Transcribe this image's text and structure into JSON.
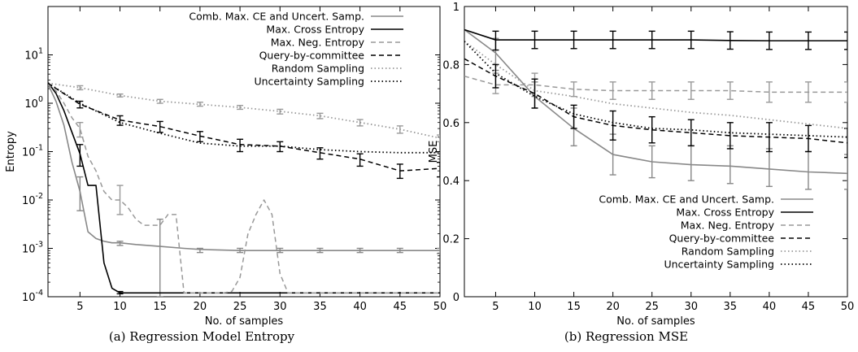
{
  "chart_data": [
    {
      "type": "line",
      "caption": "(a) Regression Model Entropy",
      "xlabel": "No. of samples",
      "ylabel": "Entropy",
      "xlim": [
        1,
        50
      ],
      "ylim": [
        0.0001,
        100
      ],
      "yscale": "log",
      "x_ticks": [
        5,
        10,
        15,
        20,
        25,
        30,
        35,
        40,
        45,
        50
      ],
      "y_ticks": [
        {
          "value": 0.0001,
          "base": "10",
          "exp": "-4"
        },
        {
          "value": 0.001,
          "base": "10",
          "exp": "-3"
        },
        {
          "value": 0.01,
          "base": "10",
          "exp": "-2"
        },
        {
          "value": 0.1,
          "base": "10",
          "exp": "-1"
        },
        {
          "value": 1,
          "base": "10",
          "exp": "0"
        },
        {
          "value": 10,
          "base": "10",
          "exp": "1"
        }
      ],
      "grid": false,
      "legend_position": "top-right",
      "series": [
        {
          "name": "Comb. Max. CE and Uncert. Samp.",
          "color": "#888888",
          "dash": "solid",
          "width": 1.6,
          "x": [
            1,
            2,
            3,
            4,
            5,
            6,
            7,
            8,
            9,
            10,
            12,
            15,
            18,
            20,
            25,
            30,
            35,
            40,
            45,
            50
          ],
          "y": [
            2.5,
            1.1,
            0.35,
            0.06,
            0.015,
            0.0022,
            0.0016,
            0.0014,
            0.0013,
            0.0013,
            0.0012,
            0.0011,
            0.001,
            0.00095,
            0.0009,
            0.0009,
            0.0009,
            0.0009,
            0.0009,
            0.0009
          ],
          "err_x": [
            5,
            10,
            15,
            20,
            25,
            30,
            35,
            40,
            45,
            50
          ],
          "err_low": [
            0.006,
            0.00115,
            0.0001,
            0.00082,
            0.00082,
            0.00082,
            0.00082,
            0.00082,
            0.00082,
            0.00078
          ],
          "err_high": [
            0.03,
            0.0014,
            0.004,
            0.001,
            0.001,
            0.001,
            0.001,
            0.001,
            0.001,
            0.001
          ]
        },
        {
          "name": "Max. Cross Entropy",
          "color": "#000000",
          "dash": "solid",
          "width": 1.6,
          "x": [
            1,
            2,
            3,
            4,
            5,
            6,
            7,
            8,
            9,
            10,
            11,
            12,
            15,
            20,
            25,
            30,
            35,
            40,
            45,
            50
          ],
          "y": [
            2.7,
            1.6,
            0.7,
            0.25,
            0.09,
            0.02,
            0.02,
            0.0005,
            0.00015,
            0.00012,
            0.00012,
            0.00012,
            0.00012,
            0.00012,
            0.00012,
            0.00012,
            0.00012,
            0.00012,
            0.00012,
            0.00012
          ],
          "err_x": [
            5,
            10
          ],
          "err_low": [
            0.05,
            0.000115
          ],
          "err_high": [
            0.14,
            0.000128
          ]
        },
        {
          "name": "Max. Neg. Entropy",
          "color": "#999999",
          "dash": "6,4",
          "width": 1.5,
          "x": [
            1,
            2,
            3,
            4,
            5,
            6,
            7,
            8,
            9,
            10,
            11,
            12,
            13,
            14,
            15,
            16,
            17,
            18,
            19,
            20,
            21,
            22,
            23,
            24,
            25,
            26,
            27,
            28,
            29,
            30,
            31,
            32,
            35,
            40,
            45,
            50
          ],
          "y": [
            2.6,
            1.8,
            1.0,
            0.5,
            0.3,
            0.08,
            0.04,
            0.015,
            0.01,
            0.01,
            0.007,
            0.004,
            0.003,
            0.003,
            0.003,
            0.005,
            0.005,
            0.00012,
            0.00012,
            0.00012,
            0.00012,
            0.00012,
            0.00012,
            0.00013,
            0.00025,
            0.002,
            0.005,
            0.01,
            0.005,
            0.0003,
            0.00012,
            0.00012,
            0.00012,
            0.00012,
            0.00012,
            0.00012
          ],
          "err_x": [
            5,
            10
          ],
          "err_low": [
            0.2,
            0.005
          ],
          "err_high": [
            0.4,
            0.02
          ]
        },
        {
          "name": "Query-by-committee",
          "color": "#000000",
          "dash": "6,4",
          "width": 1.5,
          "x": [
            1,
            5,
            10,
            15,
            20,
            25,
            30,
            35,
            40,
            45,
            50
          ],
          "y": [
            2.6,
            0.95,
            0.45,
            0.33,
            0.21,
            0.14,
            0.13,
            0.095,
            0.07,
            0.04,
            0.045
          ],
          "err_x": [
            5,
            10,
            15,
            20,
            25,
            30,
            35,
            40,
            45,
            50
          ],
          "err_low": [
            0.8,
            0.35,
            0.25,
            0.16,
            0.1,
            0.1,
            0.07,
            0.05,
            0.028,
            0.03
          ],
          "err_high": [
            1.1,
            0.55,
            0.42,
            0.26,
            0.18,
            0.16,
            0.12,
            0.09,
            0.055,
            0.06
          ]
        },
        {
          "name": "Random Sampling",
          "color": "#999999",
          "dash": "1.5,3",
          "width": 1.8,
          "x": [
            1,
            5,
            10,
            15,
            20,
            25,
            30,
            35,
            40,
            45,
            50
          ],
          "y": [
            2.6,
            2.1,
            1.45,
            1.1,
            0.95,
            0.82,
            0.68,
            0.55,
            0.4,
            0.29,
            0.19
          ],
          "err_x": [
            5,
            10,
            15,
            20,
            25,
            30,
            35,
            40,
            45,
            50
          ],
          "err_low": [
            1.9,
            1.35,
            1.0,
            0.87,
            0.75,
            0.6,
            0.48,
            0.34,
            0.24,
            0.16
          ],
          "err_high": [
            2.3,
            1.55,
            1.2,
            1.05,
            0.9,
            0.75,
            0.62,
            0.46,
            0.34,
            0.22
          ]
        },
        {
          "name": "Uncertainty Sampling",
          "color": "#000000",
          "dash": "1.5,3",
          "width": 1.8,
          "x": [
            1,
            5,
            10,
            15,
            20,
            25,
            30,
            35,
            40,
            45,
            50
          ],
          "y": [
            2.6,
            1.0,
            0.4,
            0.24,
            0.15,
            0.13,
            0.13,
            0.11,
            0.1,
            0.095,
            0.095
          ],
          "err_x": [],
          "err_low": [],
          "err_high": []
        }
      ]
    },
    {
      "type": "line",
      "caption": "(b) Regression MSE",
      "xlabel": "No. of samples",
      "ylabel": "MSE",
      "xlim": [
        1,
        50
      ],
      "ylim": [
        0,
        1
      ],
      "yscale": "linear",
      "x_ticks": [
        5,
        10,
        15,
        20,
        25,
        30,
        35,
        40,
        45,
        50
      ],
      "y_ticks": [
        {
          "value": 0,
          "label": "0"
        },
        {
          "value": 0.2,
          "label": "0.2"
        },
        {
          "value": 0.4,
          "label": "0.4"
        },
        {
          "value": 0.6,
          "label": "0.6"
        },
        {
          "value": 0.8,
          "label": "0.8"
        },
        {
          "value": 1,
          "label": "1"
        }
      ],
      "grid": false,
      "legend_position": "bottom-right",
      "series": [
        {
          "name": "Comb. Max. CE and Uncert. Samp.",
          "color": "#888888",
          "dash": "solid",
          "width": 1.6,
          "x": [
            1,
            5,
            10,
            15,
            20,
            25,
            30,
            35,
            40,
            45,
            50
          ],
          "y": [
            0.92,
            0.84,
            0.69,
            0.58,
            0.49,
            0.465,
            0.455,
            0.45,
            0.44,
            0.43,
            0.425
          ],
          "err_x": [
            5,
            10,
            15,
            20,
            25,
            30,
            35,
            40,
            45,
            50
          ],
          "err_low": [
            0.78,
            0.65,
            0.52,
            0.42,
            0.41,
            0.4,
            0.39,
            0.38,
            0.37,
            0.37
          ],
          "err_high": [
            0.89,
            0.74,
            0.65,
            0.56,
            0.52,
            0.52,
            0.52,
            0.51,
            0.5,
            0.49
          ]
        },
        {
          "name": "Max. Cross Entropy",
          "color": "#000000",
          "dash": "solid",
          "width": 1.6,
          "x": [
            1,
            5,
            10,
            15,
            20,
            25,
            30,
            35,
            40,
            45,
            50
          ],
          "y": [
            0.92,
            0.885,
            0.885,
            0.885,
            0.885,
            0.885,
            0.885,
            0.883,
            0.882,
            0.882,
            0.882
          ],
          "err_x": [
            5,
            10,
            15,
            20,
            25,
            30,
            35,
            40,
            45,
            50
          ],
          "err_low": [
            0.85,
            0.855,
            0.855,
            0.855,
            0.855,
            0.855,
            0.853,
            0.852,
            0.852,
            0.852
          ],
          "err_high": [
            0.915,
            0.915,
            0.915,
            0.915,
            0.915,
            0.915,
            0.913,
            0.912,
            0.912,
            0.912
          ]
        },
        {
          "name": "Max. Neg. Entropy",
          "color": "#999999",
          "dash": "6,4",
          "width": 1.5,
          "x": [
            1,
            5,
            10,
            15,
            20,
            25,
            30,
            35,
            40,
            45,
            50
          ],
          "y": [
            0.76,
            0.73,
            0.73,
            0.715,
            0.71,
            0.71,
            0.71,
            0.71,
            0.705,
            0.705,
            0.705
          ],
          "err_x": [
            5,
            10,
            15,
            20,
            25,
            30,
            35,
            40,
            45,
            50
          ],
          "err_low": [
            0.7,
            0.69,
            0.69,
            0.68,
            0.68,
            0.68,
            0.68,
            0.67,
            0.67,
            0.67
          ],
          "err_high": [
            0.77,
            0.77,
            0.74,
            0.74,
            0.74,
            0.74,
            0.74,
            0.74,
            0.74,
            0.74
          ]
        },
        {
          "name": "Query-by-committee",
          "color": "#000000",
          "dash": "6,4",
          "width": 1.5,
          "x": [
            1,
            5,
            10,
            15,
            20,
            25,
            30,
            35,
            40,
            45,
            50
          ],
          "y": [
            0.82,
            0.76,
            0.7,
            0.62,
            0.59,
            0.575,
            0.565,
            0.555,
            0.55,
            0.545,
            0.53
          ],
          "err_x": [
            5,
            10,
            15,
            20,
            25,
            30,
            35,
            40,
            45,
            50
          ],
          "err_low": [
            0.72,
            0.65,
            0.58,
            0.54,
            0.53,
            0.52,
            0.51,
            0.5,
            0.5,
            0.48
          ],
          "err_high": [
            0.8,
            0.75,
            0.66,
            0.64,
            0.62,
            0.61,
            0.6,
            0.6,
            0.59,
            0.58
          ]
        },
        {
          "name": "Random Sampling",
          "color": "#999999",
          "dash": "1.5,3",
          "width": 1.8,
          "x": [
            1,
            5,
            10,
            15,
            20,
            25,
            30,
            35,
            40,
            45,
            50
          ],
          "y": [
            0.88,
            0.8,
            0.71,
            0.69,
            0.665,
            0.65,
            0.635,
            0.625,
            0.61,
            0.595,
            0.58
          ],
          "err_x": [],
          "err_low": [],
          "err_high": []
        },
        {
          "name": "Uncertainty Sampling",
          "color": "#000000",
          "dash": "1.5,3",
          "width": 1.8,
          "x": [
            1,
            5,
            10,
            15,
            20,
            25,
            30,
            35,
            40,
            45,
            50
          ],
          "y": [
            0.88,
            0.77,
            0.69,
            0.63,
            0.6,
            0.58,
            0.575,
            0.565,
            0.56,
            0.555,
            0.55
          ],
          "err_x": [],
          "err_low": [],
          "err_high": []
        }
      ]
    }
  ]
}
